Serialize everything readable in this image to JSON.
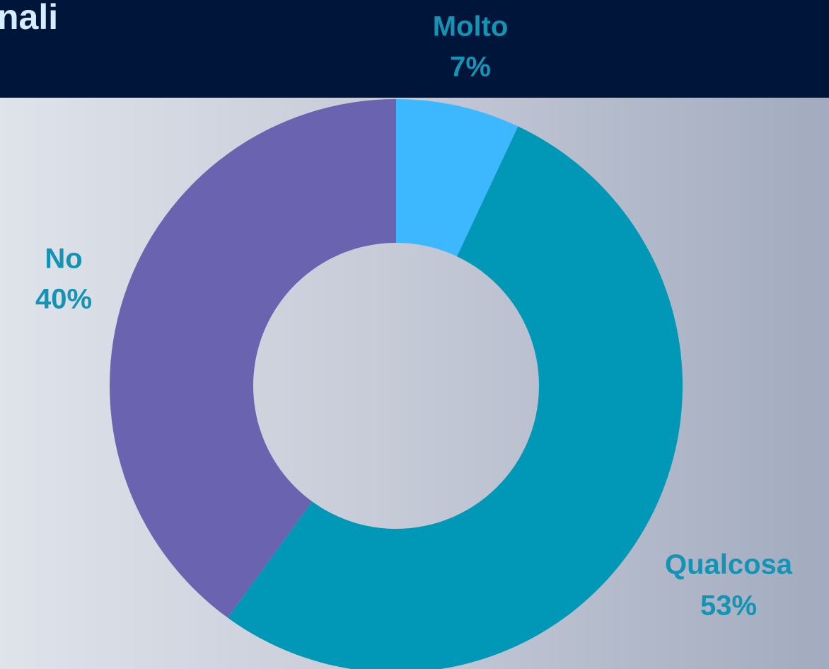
{
  "chart_data": {
    "type": "donut",
    "title": "nali",
    "categories": [
      "Molto",
      "Qualcosa",
      "No"
    ],
    "values": [
      7,
      53,
      40
    ],
    "value_labels": [
      "7%",
      "53%",
      "40%"
    ],
    "colors": [
      "#3db8ff",
      "#0098b6",
      "#6a63b0"
    ]
  }
}
